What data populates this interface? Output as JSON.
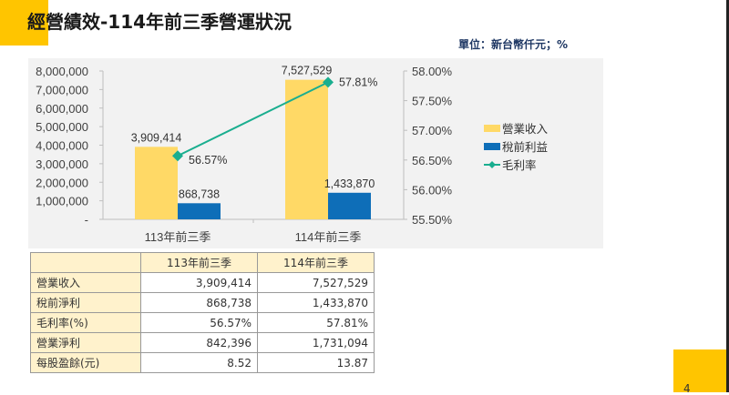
{
  "header": {
    "title": "經營績效-114年前三季營運狀況",
    "unit": "單位：新台幣仟元；%"
  },
  "colors": {
    "accent_yellow": "#FFC500",
    "revenue_bar": "#FFD966",
    "pretax_bar": "#0E6EB8",
    "margin_line": "#1AAE8F",
    "table_header_bg": "#FFF2CC",
    "panel_bg": "#F2F2F2",
    "unit_text": "#1F3864"
  },
  "chart_data": {
    "type": "bar",
    "categories": [
      "113年前三季",
      "114年前三季"
    ],
    "series": [
      {
        "name": "營業收入",
        "type": "bar",
        "axis": "left",
        "values": [
          3909414,
          7527529
        ],
        "labels": [
          "3,909,414",
          "7,527,529"
        ]
      },
      {
        "name": "稅前利益",
        "type": "bar",
        "axis": "left",
        "values": [
          868738,
          1433870
        ],
        "labels": [
          "868,738",
          "1,433,870"
        ]
      },
      {
        "name": "毛利率",
        "type": "line",
        "axis": "right",
        "values": [
          56.57,
          57.81
        ],
        "labels": [
          "56.57%",
          "57.81%"
        ]
      }
    ],
    "left_axis": {
      "ylim": [
        0,
        8000000
      ],
      "ticks": [
        "-",
        "1,000,000",
        "2,000,000",
        "3,000,000",
        "4,000,000",
        "5,000,000",
        "6,000,000",
        "7,000,000",
        "8,000,000"
      ]
    },
    "right_axis": {
      "ylim": [
        55.5,
        58.0
      ],
      "ticks": [
        "55.50%",
        "56.00%",
        "56.50%",
        "57.00%",
        "57.50%",
        "58.00%"
      ]
    },
    "legend": [
      "營業收入",
      "稅前利益",
      "毛利率"
    ],
    "legend_position": "right",
    "grid": false,
    "title": ""
  },
  "table": {
    "headers": [
      "",
      "113年前三季",
      "114年前三季"
    ],
    "rows": [
      {
        "label": "營業收入",
        "v113": "3,909,414",
        "v114": "7,527,529"
      },
      {
        "label": "稅前淨利",
        "v113": "868,738",
        "v114": "1,433,870"
      },
      {
        "label": "毛利率(%)",
        "v113": "56.57%",
        "v114": "57.81%"
      },
      {
        "label": "營業淨利",
        "v113": "842,396",
        "v114": "1,731,094"
      },
      {
        "label": "每股盈餘(元)",
        "v113": "8.52",
        "v114": "13.87"
      }
    ]
  },
  "footer": {
    "page_number": "4"
  }
}
